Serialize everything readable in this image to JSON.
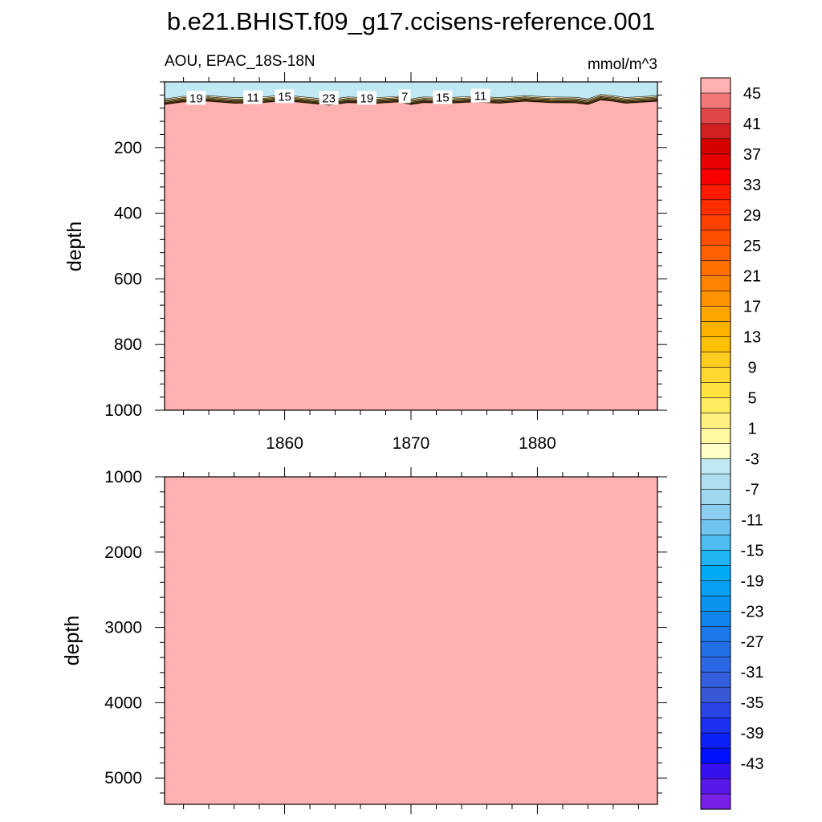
{
  "title": "b.e21.BHIST.f09_g17.ccisens-reference.001",
  "chart_data": [
    {
      "type": "heatmap",
      "panel": "upper",
      "subtitle_left": "AOU, EPAC_18S-18N",
      "subtitle_right": "mmol/m^3",
      "ylabel": "depth",
      "xlabel": "",
      "xlim": [
        1850.5,
        1889.5
      ],
      "ylim": [
        1000,
        0
      ],
      "x_ticks": [
        1860,
        1870,
        1880
      ],
      "y_ticks": [
        200,
        400,
        600,
        800,
        1000
      ],
      "fill_value_below_surface": 47,
      "surface_value": -2,
      "contour_labels": [
        {
          "x": 1853,
          "depth": 50,
          "text": "19"
        },
        {
          "x": 1857.5,
          "depth": 48,
          "text": "11"
        },
        {
          "x": 1860,
          "depth": 45,
          "text": "15"
        },
        {
          "x": 1863.5,
          "depth": 50,
          "text": "23"
        },
        {
          "x": 1866.5,
          "depth": 50,
          "text": "19"
        },
        {
          "x": 1869.5,
          "depth": 45,
          "text": "7"
        },
        {
          "x": 1872.5,
          "depth": 48,
          "text": "15"
        },
        {
          "x": 1875.5,
          "depth": 43,
          "text": "11"
        }
      ],
      "hypoxic_boundary_depth": {
        "x": [
          1850.5,
          1852,
          1854,
          1856,
          1858,
          1860,
          1862,
          1863.5,
          1865,
          1867,
          1869,
          1870,
          1871,
          1873,
          1875,
          1877,
          1879,
          1881,
          1883,
          1884,
          1885,
          1886,
          1887,
          1889.5
        ],
        "depth": [
          70,
          62,
          60,
          66,
          65,
          58,
          66,
          72,
          64,
          67,
          62,
          70,
          64,
          66,
          62,
          66,
          60,
          64,
          65,
          70,
          56,
          60,
          66,
          60
        ]
      }
    },
    {
      "type": "heatmap",
      "panel": "lower",
      "ylabel": "depth",
      "xlim": [
        1850.5,
        1889.5
      ],
      "ylim": [
        5350,
        1000
      ],
      "y_ticks": [
        1000,
        2000,
        3000,
        4000,
        5000
      ],
      "fill_value": 47
    }
  ],
  "colorbar": {
    "labels": [
      "45",
      "41",
      "37",
      "33",
      "29",
      "25",
      "21",
      "17",
      "13",
      "9",
      "5",
      "1",
      "-3",
      "-7",
      "-11",
      "-15",
      "-19",
      "-23",
      "-27",
      "-31",
      "-35",
      "-39",
      "-43"
    ],
    "colors": [
      "#ffb0b0",
      "#f07878",
      "#e04848",
      "#d22020",
      "#d40000",
      "#e60000",
      "#f80000",
      "#ff1a00",
      "#ff2d00",
      "#ff4000",
      "#ff5000",
      "#ff6000",
      "#ff7000",
      "#ff8200",
      "#ff9400",
      "#ffa500",
      "#ffb300",
      "#ffc000",
      "#ffcc20",
      "#ffd830",
      "#ffe340",
      "#ffeb60",
      "#fff080",
      "#fff8a0",
      "#ffffc8",
      "#c0e8f2",
      "#b0e0f0",
      "#a0d8f0",
      "#8ccdf0",
      "#70c4f0",
      "#4cbcf2",
      "#20b4f4",
      "#00aaf5",
      "#08a0f2",
      "#0a94f0",
      "#1286ee",
      "#1a78ea",
      "#2470e8",
      "#2c68e4",
      "#3460e0",
      "#3858d6",
      "#2a44e6",
      "#1c30f0",
      "#0e20f8",
      "#0010ff",
      "#3810f0",
      "#5818ea",
      "#7820e8"
    ]
  }
}
